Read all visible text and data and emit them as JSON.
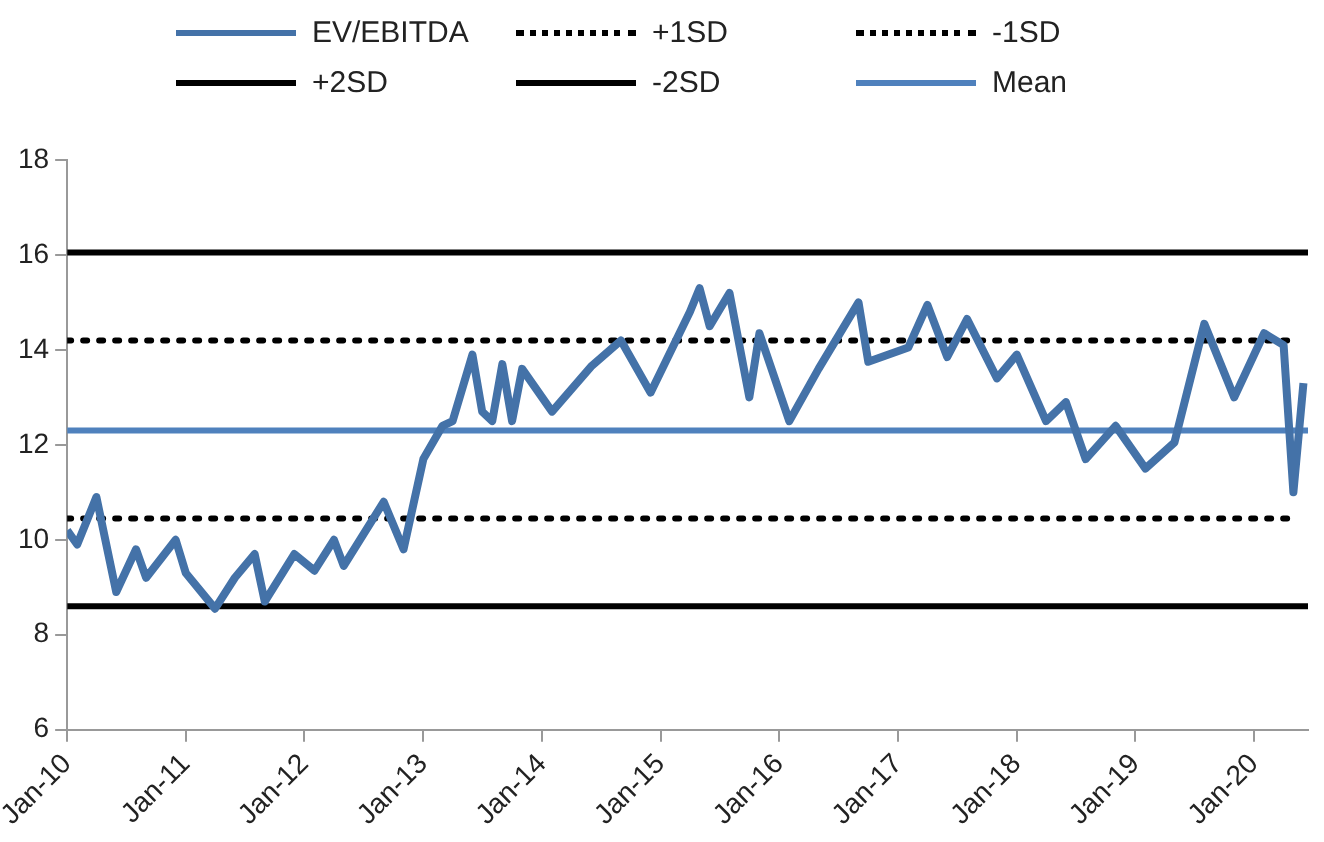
{
  "chart_data": {
    "type": "line",
    "legend": "top",
    "grid": false,
    "marker": "none",
    "xlim": [
      "2010-01",
      "2020-06-15"
    ],
    "xticks": [
      {
        "value": "2010-01",
        "label": "Jan-10"
      },
      {
        "value": "2011-01",
        "label": "Jan-11"
      },
      {
        "value": "2012-01",
        "label": "Jan-12"
      },
      {
        "value": "2013-01",
        "label": "Jan-13"
      },
      {
        "value": "2014-01",
        "label": "Jan-14"
      },
      {
        "value": "2015-01",
        "label": "Jan-15"
      },
      {
        "value": "2016-01",
        "label": "Jan-16"
      },
      {
        "value": "2017-01",
        "label": "Jan-17"
      },
      {
        "value": "2018-01",
        "label": "Jan-18"
      },
      {
        "value": "2019-01",
        "label": "Jan-19"
      },
      {
        "value": "2020-01",
        "label": "Jan-20"
      }
    ],
    "ylim": [
      6,
      18
    ],
    "yticks": [
      6,
      8,
      10,
      12,
      14,
      16,
      18
    ],
    "series": [
      {
        "name": "EV/EBITDA",
        "color": "#4472a8",
        "line_style": "solid",
        "x": [
          "2010-01",
          "2010-02",
          "2010-04",
          "2010-06",
          "2010-08",
          "2010-09",
          "2010-12",
          "2011-01",
          "2011-04",
          "2011-06",
          "2011-08",
          "2011-09",
          "2011-12",
          "2012-02",
          "2012-04",
          "2012-05",
          "2012-09",
          "2012-11",
          "2013-01",
          "2013-03",
          "2013-04",
          "2013-06",
          "2013-07",
          "2013-08",
          "2013-09",
          "2013-10",
          "2013-11",
          "2014-02",
          "2014-06",
          "2014-09",
          "2014-12",
          "2015-04",
          "2015-05",
          "2015-06",
          "2015-08",
          "2015-10",
          "2015-11",
          "2016-02",
          "2016-05",
          "2016-09",
          "2016-10",
          "2017-02",
          "2017-04",
          "2017-06",
          "2017-08",
          "2017-11",
          "2018-01",
          "2018-04",
          "2018-06",
          "2018-08",
          "2018-11",
          "2019-02",
          "2019-05",
          "2019-08",
          "2019-11",
          "2020-02",
          "2020-04",
          "2020-05",
          "2020-06"
        ],
        "values": [
          10.2,
          9.9,
          10.9,
          8.9,
          9.8,
          9.2,
          10.0,
          9.3,
          8.55,
          9.2,
          9.7,
          8.7,
          9.7,
          9.35,
          10.0,
          9.45,
          10.8,
          9.8,
          11.7,
          12.4,
          12.5,
          13.9,
          12.7,
          12.5,
          13.7,
          12.5,
          13.6,
          12.7,
          13.65,
          14.2,
          13.1,
          14.8,
          15.3,
          14.5,
          15.2,
          13.0,
          14.35,
          12.5,
          13.6,
          15.0,
          13.75,
          14.05,
          14.95,
          13.85,
          14.65,
          13.4,
          13.9,
          12.5,
          12.9,
          11.7,
          12.4,
          11.5,
          12.05,
          14.55,
          13.0,
          14.35,
          14.1,
          11.0,
          13.3
        ]
      },
      {
        "name": "+1SD",
        "color": "#000000",
        "line_style": "dotted",
        "x": [
          "2010-01",
          "2020-04-15"
        ],
        "values": [
          14.2,
          14.2
        ]
      },
      {
        "name": "-1SD",
        "color": "#000000",
        "line_style": "dotted",
        "x": [
          "2010-01",
          "2020-04-15"
        ],
        "values": [
          10.45,
          10.45
        ]
      },
      {
        "name": "+2SD",
        "color": "#000000",
        "line_style": "solid",
        "x": [
          "2010-01",
          "2020-06-15"
        ],
        "values": [
          16.05,
          16.05
        ]
      },
      {
        "name": "-2SD",
        "color": "#000000",
        "line_style": "solid",
        "x": [
          "2010-01",
          "2020-06-15"
        ],
        "values": [
          8.6,
          8.6
        ]
      },
      {
        "name": "Mean",
        "color": "#4f81bd",
        "line_style": "solid",
        "x": [
          "2010-01",
          "2020-06-15"
        ],
        "values": [
          12.3,
          12.3
        ]
      }
    ]
  }
}
